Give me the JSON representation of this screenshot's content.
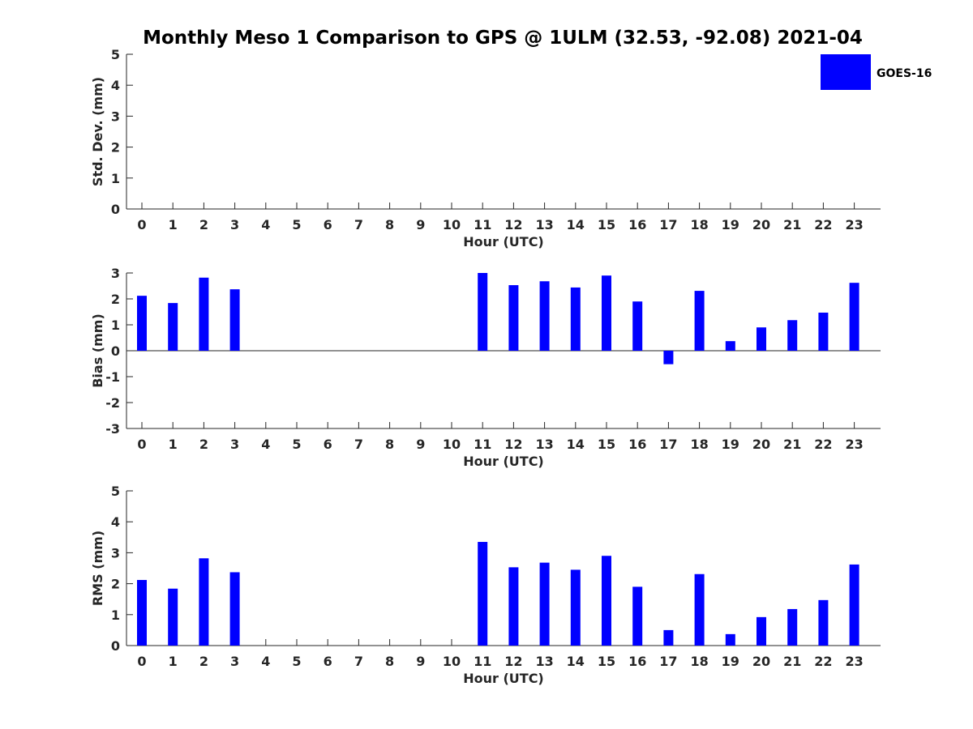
{
  "title": "Monthly Meso 1 Comparison to GPS @ 1ULM (32.53, -92.08) 2021-04",
  "legend": {
    "label": "GOES-16",
    "color": "#0000ff"
  },
  "chart_data": [
    {
      "type": "bar",
      "name": "std_dev",
      "xlabel": "Hour (UTC)",
      "ylabel": "Std. Dev. (mm)",
      "ylim": [
        0,
        5
      ],
      "yticks": [
        "0",
        "1",
        "2",
        "3",
        "4",
        "5"
      ],
      "categories": [
        "0",
        "1",
        "2",
        "3",
        "4",
        "5",
        "6",
        "7",
        "8",
        "9",
        "10",
        "11",
        "12",
        "13",
        "14",
        "15",
        "16",
        "17",
        "18",
        "19",
        "20",
        "21",
        "22",
        "23"
      ],
      "series": [
        {
          "color": "#0000ff",
          "values": [
            0,
            0,
            0,
            0,
            0,
            0,
            0,
            0,
            0,
            0,
            0,
            0,
            0,
            0,
            0,
            0,
            0,
            0,
            0,
            0,
            0,
            0,
            0,
            0
          ]
        }
      ]
    },
    {
      "type": "bar",
      "name": "bias",
      "xlabel": "Hour (UTC)",
      "ylabel": "Bias (mm)",
      "ylim": [
        -3,
        3
      ],
      "yticks": [
        "-3",
        "-2",
        "-1",
        "0",
        "1",
        "2",
        "3"
      ],
      "zero_line": true,
      "categories": [
        "0",
        "1",
        "2",
        "3",
        "4",
        "5",
        "6",
        "7",
        "8",
        "9",
        "10",
        "11",
        "12",
        "13",
        "14",
        "15",
        "16",
        "17",
        "18",
        "19",
        "20",
        "21",
        "22",
        "23"
      ],
      "series": [
        {
          "color": "#0000ff",
          "values": [
            2.12,
            1.84,
            2.82,
            2.37,
            0,
            0,
            0,
            0,
            0,
            0,
            0,
            3.0,
            2.53,
            2.68,
            2.44,
            2.9,
            1.9,
            -0.52,
            2.31,
            0.37,
            0.9,
            1.18,
            1.47,
            2.62
          ]
        }
      ]
    },
    {
      "type": "bar",
      "name": "rms",
      "xlabel": "Hour (UTC)",
      "ylabel": "RMS (mm)",
      "ylim": [
        0,
        5
      ],
      "yticks": [
        "0",
        "1",
        "2",
        "3",
        "4",
        "5"
      ],
      "categories": [
        "0",
        "1",
        "2",
        "3",
        "4",
        "5",
        "6",
        "7",
        "8",
        "9",
        "10",
        "11",
        "12",
        "13",
        "14",
        "15",
        "16",
        "17",
        "18",
        "19",
        "20",
        "21",
        "22",
        "23"
      ],
      "series": [
        {
          "color": "#0000ff",
          "values": [
            2.12,
            1.84,
            2.82,
            2.37,
            0,
            0,
            0,
            0,
            0,
            0,
            0,
            3.35,
            2.53,
            2.68,
            2.45,
            2.9,
            1.9,
            0.5,
            2.31,
            0.37,
            0.92,
            1.18,
            1.47,
            2.62
          ]
        }
      ]
    }
  ]
}
